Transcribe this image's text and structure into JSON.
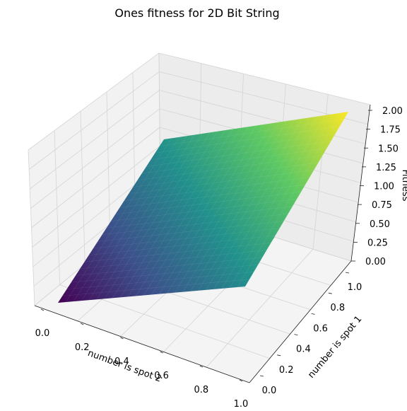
{
  "chart_data": {
    "type": "surface3d",
    "title": "Ones fitness for 2D Bit String",
    "xlabel": "number is spot 2",
    "ylabel": "number is spot 1",
    "zlabel": "Fitness",
    "x_ticks": [
      "0.0",
      "0.2",
      "0.4",
      "0.6",
      "0.8",
      "1.0"
    ],
    "y_ticks": [
      "0.0",
      "0.2",
      "0.4",
      "0.6",
      "0.8",
      "1.0"
    ],
    "z_ticks": [
      "0.00",
      "0.25",
      "0.50",
      "0.75",
      "1.00",
      "1.25",
      "1.50",
      "1.75",
      "2.00"
    ],
    "xlim": [
      0,
      1
    ],
    "ylim": [
      0,
      1
    ],
    "zlim": [
      0,
      2
    ],
    "function": "z = x + y",
    "corners": [
      {
        "x": 0,
        "y": 0,
        "z": 0
      },
      {
        "x": 1,
        "y": 0,
        "z": 1
      },
      {
        "x": 0,
        "y": 1,
        "z": 1
      },
      {
        "x": 1,
        "y": 1,
        "z": 2
      }
    ],
    "colormap": "viridis",
    "colormap_stops": [
      "#440154",
      "#3b528b",
      "#21918c",
      "#5ec962",
      "#fde725"
    ],
    "grid": true
  }
}
